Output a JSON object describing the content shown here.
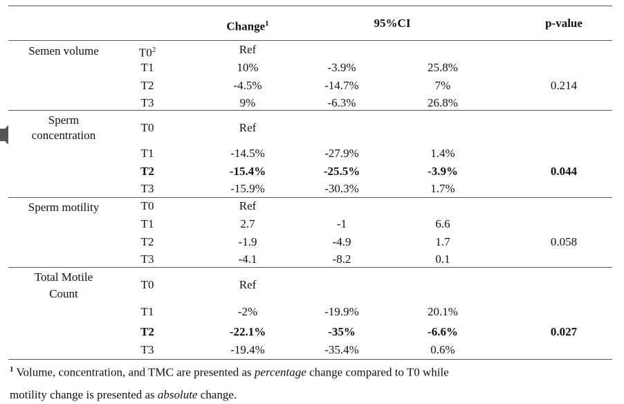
{
  "header": {
    "change": "Change",
    "change_sup": "1",
    "ci": "95%CI",
    "pvalue": "p-value"
  },
  "groups": [
    {
      "label": "Semen volume",
      "rows": [
        {
          "time": "T0",
          "time_sup": "2",
          "change": "Ref",
          "lo": "",
          "hi": "",
          "bold": false
        },
        {
          "time": "T1",
          "change": "10%",
          "lo": "-3.9%",
          "hi": "25.8%",
          "bold": false
        },
        {
          "time": "T2",
          "change": "-4.5%",
          "lo": "-14.7%",
          "hi": "7%",
          "bold": false
        },
        {
          "time": "T3",
          "change": "9%",
          "lo": "-6.3%",
          "hi": "26.8%",
          "bold": false
        }
      ],
      "pvalue": "0.214",
      "pvalue_bold": false
    },
    {
      "label": "Sperm concentration",
      "rows": [
        {
          "time": "T0",
          "change": "Ref",
          "lo": "",
          "hi": "",
          "bold": false
        },
        {
          "time": "T1",
          "change": "-14.5%",
          "lo": "-27.9%",
          "hi": "1.4%",
          "bold": false
        },
        {
          "time": "T2",
          "change": "-15.4%",
          "lo": "-25.5%",
          "hi": "-3.9%",
          "bold": true
        },
        {
          "time": "T3",
          "change": "-15.9%",
          "lo": "-30.3%",
          "hi": "1.7%",
          "bold": false
        }
      ],
      "pvalue": "0.044",
      "pvalue_bold": true
    },
    {
      "label": "Sperm motility",
      "rows": [
        {
          "time": "T0",
          "change": "Ref",
          "lo": "",
          "hi": "",
          "bold": false
        },
        {
          "time": "T1",
          "change": "2.7",
          "lo": "-1",
          "hi": "6.6",
          "bold": false
        },
        {
          "time": "T2",
          "change": "-1.9",
          "lo": "-4.9",
          "hi": "1.7",
          "bold": false
        },
        {
          "time": "T3",
          "change": "-4.1",
          "lo": "-8.2",
          "hi": "0.1",
          "bold": false
        }
      ],
      "pvalue": "0.058",
      "pvalue_bold": false
    },
    {
      "label": "Total Motile Count",
      "rows": [
        {
          "time": "T0",
          "change": "Ref",
          "lo": "",
          "hi": "",
          "bold": false
        },
        {
          "time": "T1",
          "change": "-2%",
          "lo": "-19.9%",
          "hi": "20.1%",
          "bold": false
        },
        {
          "time": "T2",
          "change": "-22.1%",
          "lo": "-35%",
          "hi": "-6.6%",
          "bold": true
        },
        {
          "time": "T3",
          "change": "-19.4%",
          "lo": "-35.4%",
          "hi": "0.6%",
          "bold": false
        }
      ],
      "pvalue": "0.027",
      "pvalue_bold": true
    }
  ],
  "footnote": {
    "marker": "1",
    "line1_a": " Volume, concentration, and TMC are presented as ",
    "line1_em": "percentage",
    "line1_b": " change compared to T0 while",
    "line2_a": "motility change is presented as ",
    "line2_em": "absolute",
    "line2_b": " change."
  }
}
